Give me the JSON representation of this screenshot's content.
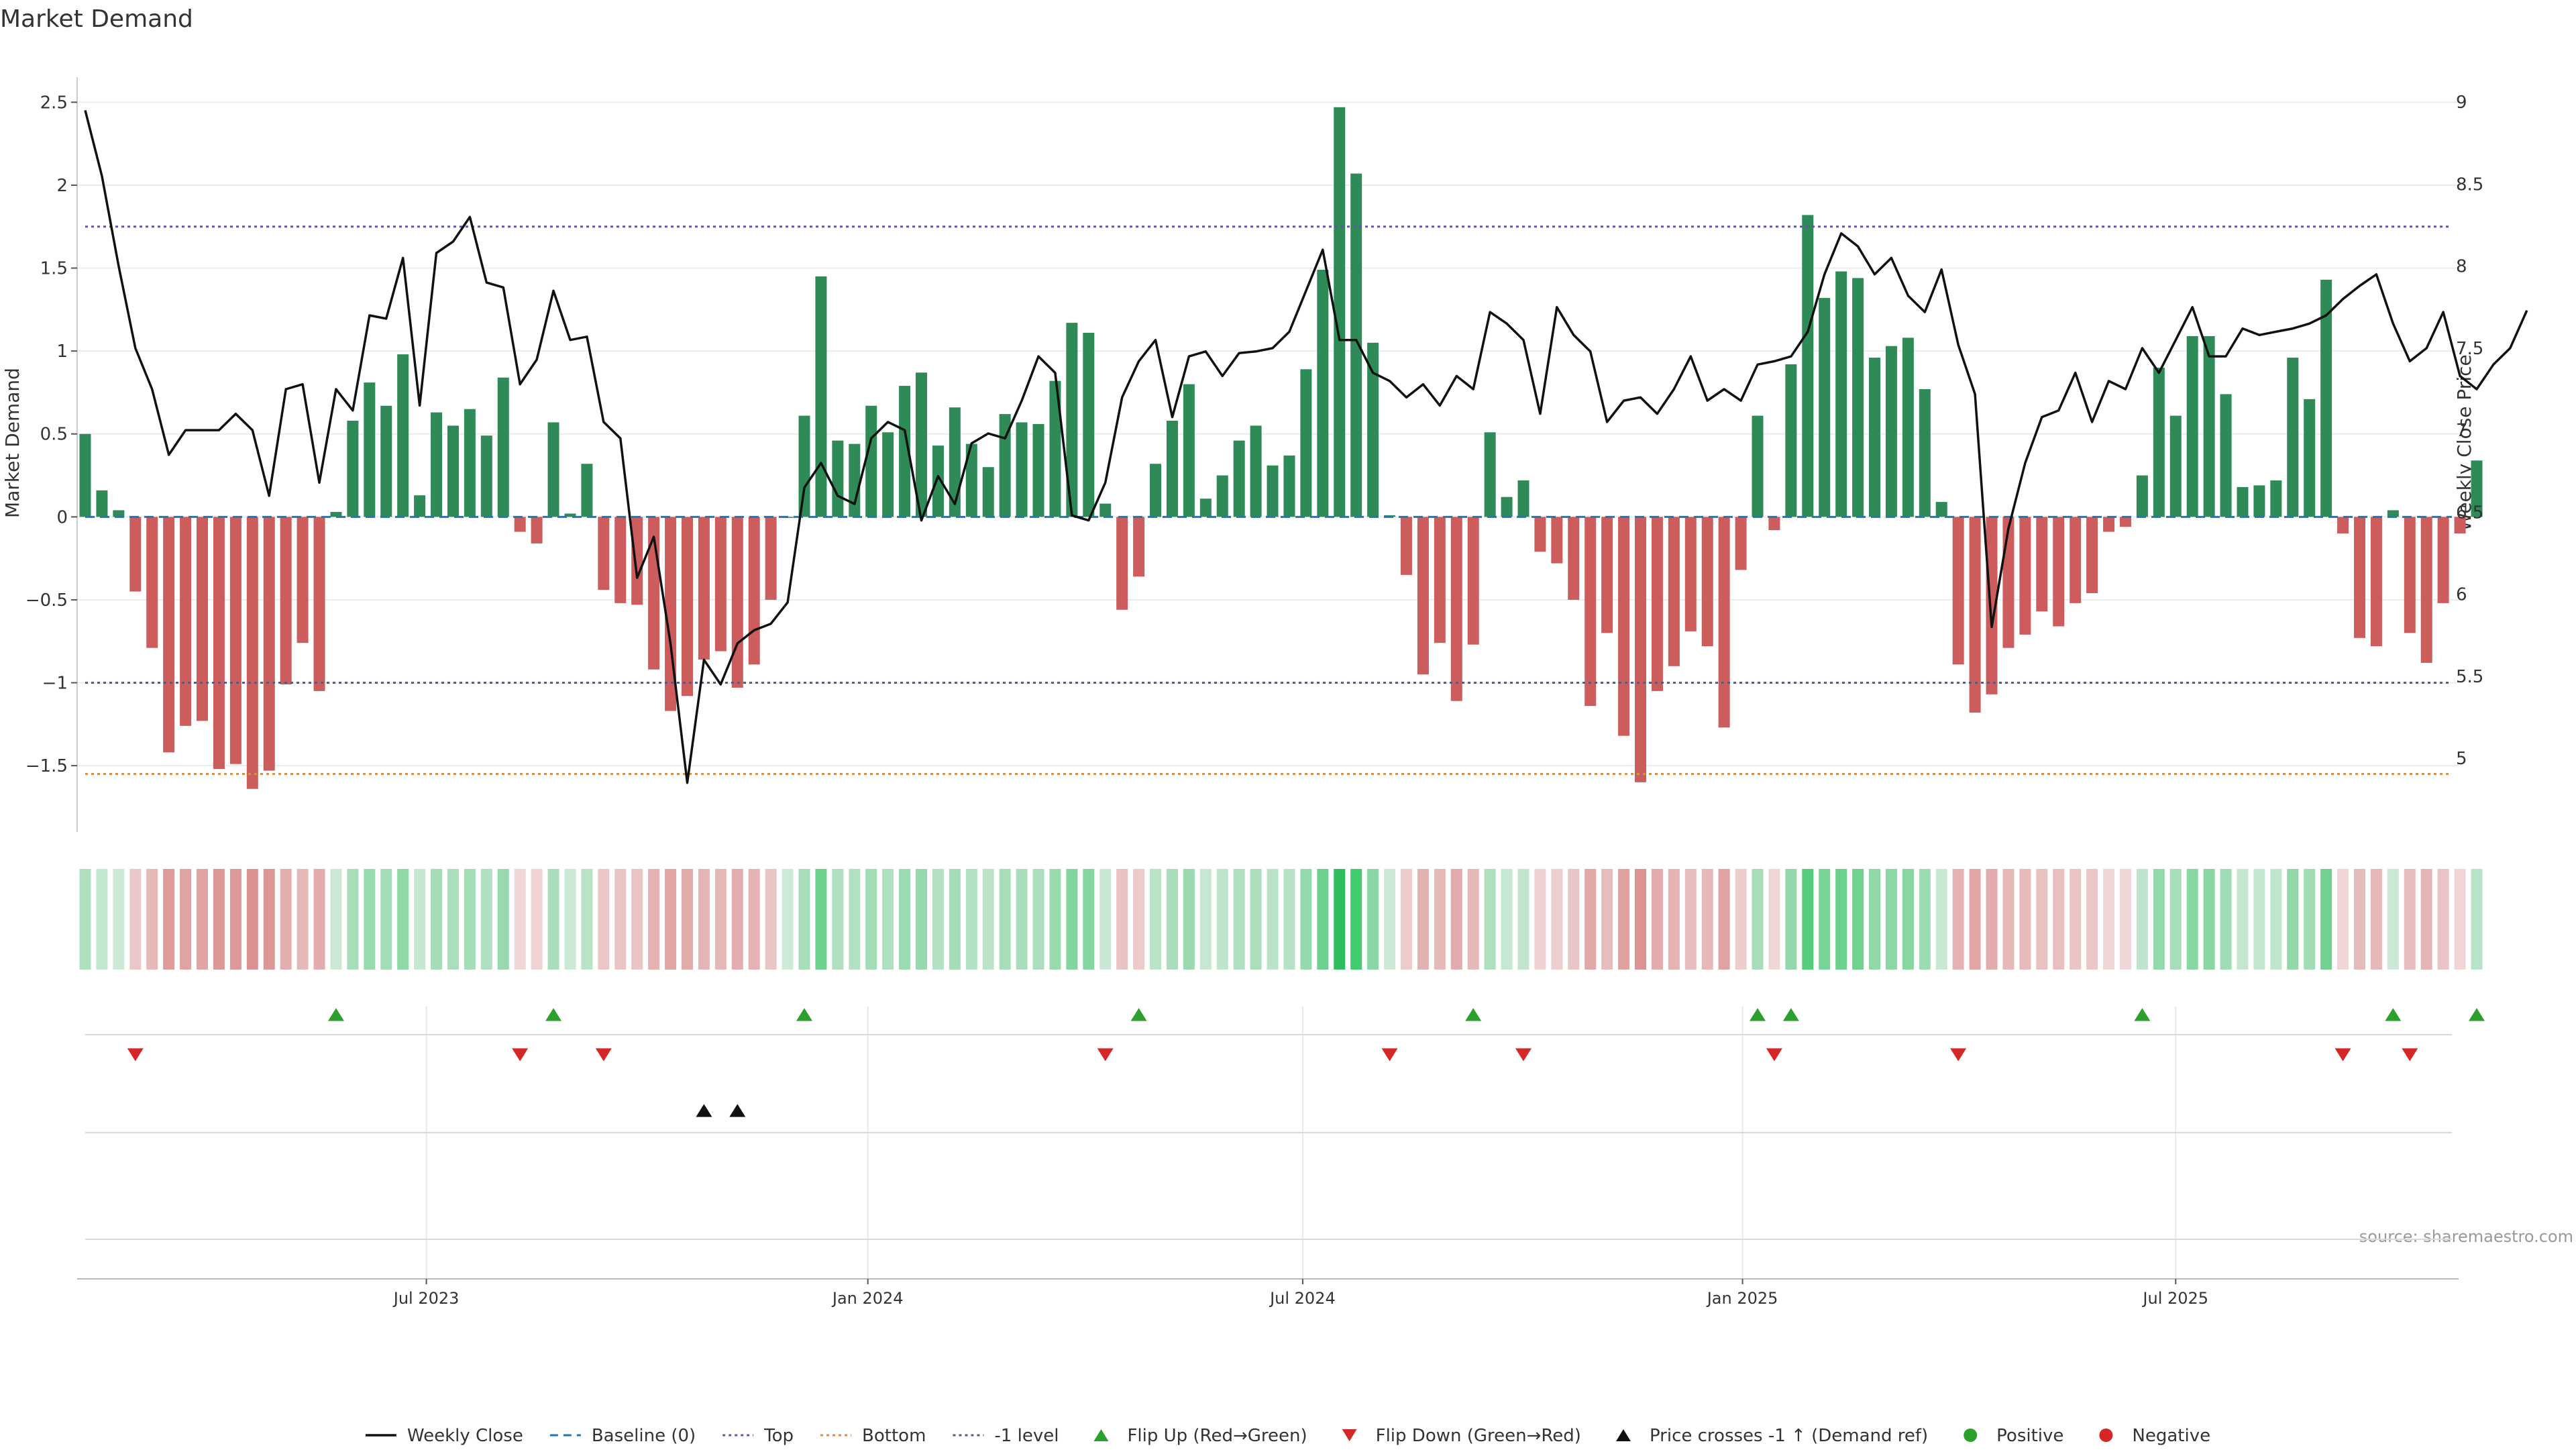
{
  "chart_data": {
    "type": "bar",
    "title": "Market Demand",
    "ylabel": "Market Demand",
    "y2label": "Weekly Close Price",
    "ylim": [
      -1.9,
      2.55
    ],
    "y2lim": [
      4.55,
      9.05
    ],
    "yticks": [
      2.5,
      2,
      1.5,
      1,
      0.5,
      0,
      -0.5,
      -1,
      -1.5
    ],
    "y2ticks": [
      9,
      8.5,
      8,
      7.5,
      7,
      6.5,
      6,
      5.5,
      5
    ],
    "x_tick_labels": [
      {
        "label": "Jul 2023",
        "week": 20.4
      },
      {
        "label": "Jan 2024",
        "week": 46.8
      },
      {
        "label": "Jul 2024",
        "week": 72.8
      },
      {
        "label": "Jan 2025",
        "week": 99.1
      },
      {
        "label": "Jul 2025",
        "week": 125
      }
    ],
    "reference_lines": {
      "baseline": 0,
      "top": 1.75,
      "bottom": -1.55,
      "minus_one": -1
    },
    "demand": [
      0.5,
      0.16,
      0.04,
      -0.45,
      -0.79,
      -1.42,
      -1.26,
      -1.23,
      -1.52,
      -1.49,
      -1.64,
      -1.53,
      -1.01,
      -0.76,
      -1.05,
      0.03,
      0.58,
      0.81,
      0.67,
      0.98,
      0.13,
      0.63,
      0.55,
      0.65,
      0.49,
      0.84,
      -0.09,
      -0.16,
      0.57,
      0.02,
      0.32,
      -0.44,
      -0.52,
      -0.53,
      -0.92,
      -1.17,
      -1.08,
      -0.86,
      -0.81,
      -1.03,
      -0.89,
      -0.5,
      0,
      0.61,
      1.45,
      0.46,
      0.44,
      0.67,
      0.51,
      0.79,
      0.87,
      0.43,
      0.66,
      0.44,
      0.3,
      0.62,
      0.57,
      0.56,
      0.82,
      1.17,
      1.11,
      0.08,
      -0.56,
      -0.36,
      0.32,
      0.58,
      0.8,
      0.11,
      0.25,
      0.46,
      0.55,
      0.31,
      0.37,
      0.89,
      1.49,
      2.47,
      2.07,
      1.05,
      0.01,
      -0.35,
      -0.95,
      -0.76,
      -1.11,
      -0.77,
      0.51,
      0.12,
      0.22,
      -0.21,
      -0.28,
      -0.5,
      -1.14,
      -0.7,
      -1.32,
      -1.6,
      -1.05,
      -0.9,
      -0.69,
      -0.78,
      -1.27,
      -0.32,
      0.61,
      -0.08,
      0.92,
      1.82,
      1.32,
      1.48,
      1.44,
      0.96,
      1.03,
      1.08,
      0.77,
      0.09,
      -0.89,
      -1.18,
      -1.07,
      -0.79,
      -0.71,
      -0.57,
      -0.66,
      -0.52,
      -0.46,
      -0.09,
      -0.06,
      0.25,
      0.9,
      0.61,
      1.09,
      1.09,
      0.74,
      0.18,
      0.19,
      0.22,
      0.96,
      0.71,
      1.43,
      -0.1,
      -0.73,
      -0.78,
      0.04,
      -0.7,
      -0.88,
      -0.52,
      -0.1,
      0.34
    ],
    "weekly_close": [
      8.95,
      8.55,
      8,
      7.5,
      7.25,
      6.85,
      7,
      7,
      7,
      7.1,
      7,
      6.6,
      7.25,
      7.28,
      6.68,
      7.25,
      7.12,
      7.7,
      7.68,
      8.05,
      7.15,
      8.08,
      8.15,
      8.3,
      7.9,
      7.87,
      7.28,
      7.43,
      7.85,
      7.55,
      7.57,
      7.05,
      6.95,
      6.1,
      6.35,
      5.7,
      4.85,
      5.6,
      5.45,
      5.7,
      5.78,
      5.82,
      5.95,
      6.65,
      6.8,
      6.6,
      6.55,
      6.95,
      7.05,
      7.0,
      6.45,
      6.72,
      6.55,
      6.92,
      6.98,
      6.95,
      7.18,
      7.45,
      7.35,
      6.48,
      6.45,
      6.68,
      7.2,
      7.42,
      7.55,
      7.08,
      7.45,
      7.48,
      7.33,
      7.47,
      7.48,
      7.5,
      7.6,
      7.85,
      8.1,
      7.55,
      7.55,
      7.35,
      7.3,
      7.2,
      7.28,
      7.15,
      7.33,
      7.25,
      7.72,
      7.65,
      7.55,
      7.1,
      7.75,
      7.58,
      7.48,
      7.05,
      7.18,
      7.2,
      7.1,
      7.25,
      7.45,
      7.18,
      7.25,
      7.18,
      7.4,
      7.42,
      7.45,
      7.6,
      7.95,
      8.2,
      8.12,
      7.95,
      8.05,
      7.82,
      7.72,
      7.98,
      7.52,
      7.22,
      5.8,
      6.4,
      6.8,
      7.08,
      7.12,
      7.35,
      7.05,
      7.3,
      7.25,
      7.5,
      7.35,
      7.55,
      7.75,
      7.45,
      7.45,
      7.62,
      7.58,
      7.6,
      7.62,
      7.65,
      7.7,
      7.8,
      7.88,
      7.95,
      7.65,
      7.42,
      7.5,
      7.72,
      7.33,
      7.25,
      7.4,
      7.5,
      7.73
    ],
    "flip_up_weeks": [
      15,
      28,
      43,
      63,
      83,
      100,
      102,
      123,
      138,
      143
    ],
    "flip_down_weeks": [
      3,
      26,
      31,
      61,
      78,
      86,
      101,
      112,
      135,
      139
    ],
    "price_cross_weeks": [
      37,
      39
    ],
    "legend": [
      {
        "label": "Weekly Close",
        "kind": "solid-line",
        "color": "#111111"
      },
      {
        "label": "Baseline (0)",
        "kind": "dash-line",
        "color": "#1f77b4"
      },
      {
        "label": "Top",
        "kind": "dot-line",
        "color": "#5a5aa8"
      },
      {
        "label": "Bottom",
        "kind": "dot-line",
        "color": "#d4924a"
      },
      {
        "label": "-1 level",
        "kind": "dot-line",
        "color": "#5a5a7a"
      },
      {
        "label": "Flip Up (Red→Green)",
        "kind": "tri-up",
        "color": "#2ca02c"
      },
      {
        "label": "Flip Down (Green→Red)",
        "kind": "tri-down",
        "color": "#d62728"
      },
      {
        "label": "Price crosses -1 ↑ (Demand ref)",
        "kind": "tri-up",
        "color": "#111111"
      },
      {
        "label": "Positive",
        "kind": "dot",
        "color": "#2ca02c"
      },
      {
        "label": "Negative",
        "kind": "dot",
        "color": "#d62728"
      }
    ],
    "source": "source: sharemaestro.com",
    "colors": {
      "positive": "#2e8b57",
      "negative": "#cd5c5c",
      "price": "#111111",
      "top": "#5a5aa8",
      "bottom": "#d4924a",
      "minus_one": "#5a5a7a",
      "baseline": "#1f77b4"
    }
  }
}
